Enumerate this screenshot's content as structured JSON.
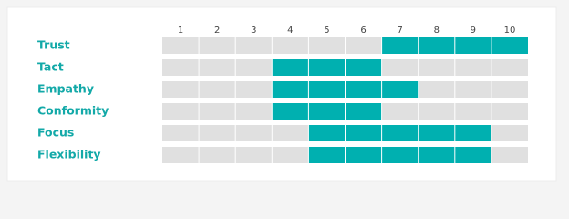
{
  "chart_data": {
    "type": "range-bar",
    "categories": [
      "Trust",
      "Tact",
      "Empathy",
      "Conformity",
      "Focus",
      "Flexibility"
    ],
    "ranges": [
      [
        6.5,
        10.5
      ],
      [
        3.5,
        6.5
      ],
      [
        3.5,
        7.5
      ],
      [
        3.5,
        6.5
      ],
      [
        4.5,
        9.5
      ],
      [
        4.5,
        9.5
      ]
    ],
    "xlim": [
      0.5,
      10.5
    ],
    "xticks": [
      1,
      2,
      3,
      4,
      5,
      6,
      7,
      8,
      9,
      10
    ],
    "color": "#00b0b0",
    "track_color": "#e0e0e0"
  }
}
